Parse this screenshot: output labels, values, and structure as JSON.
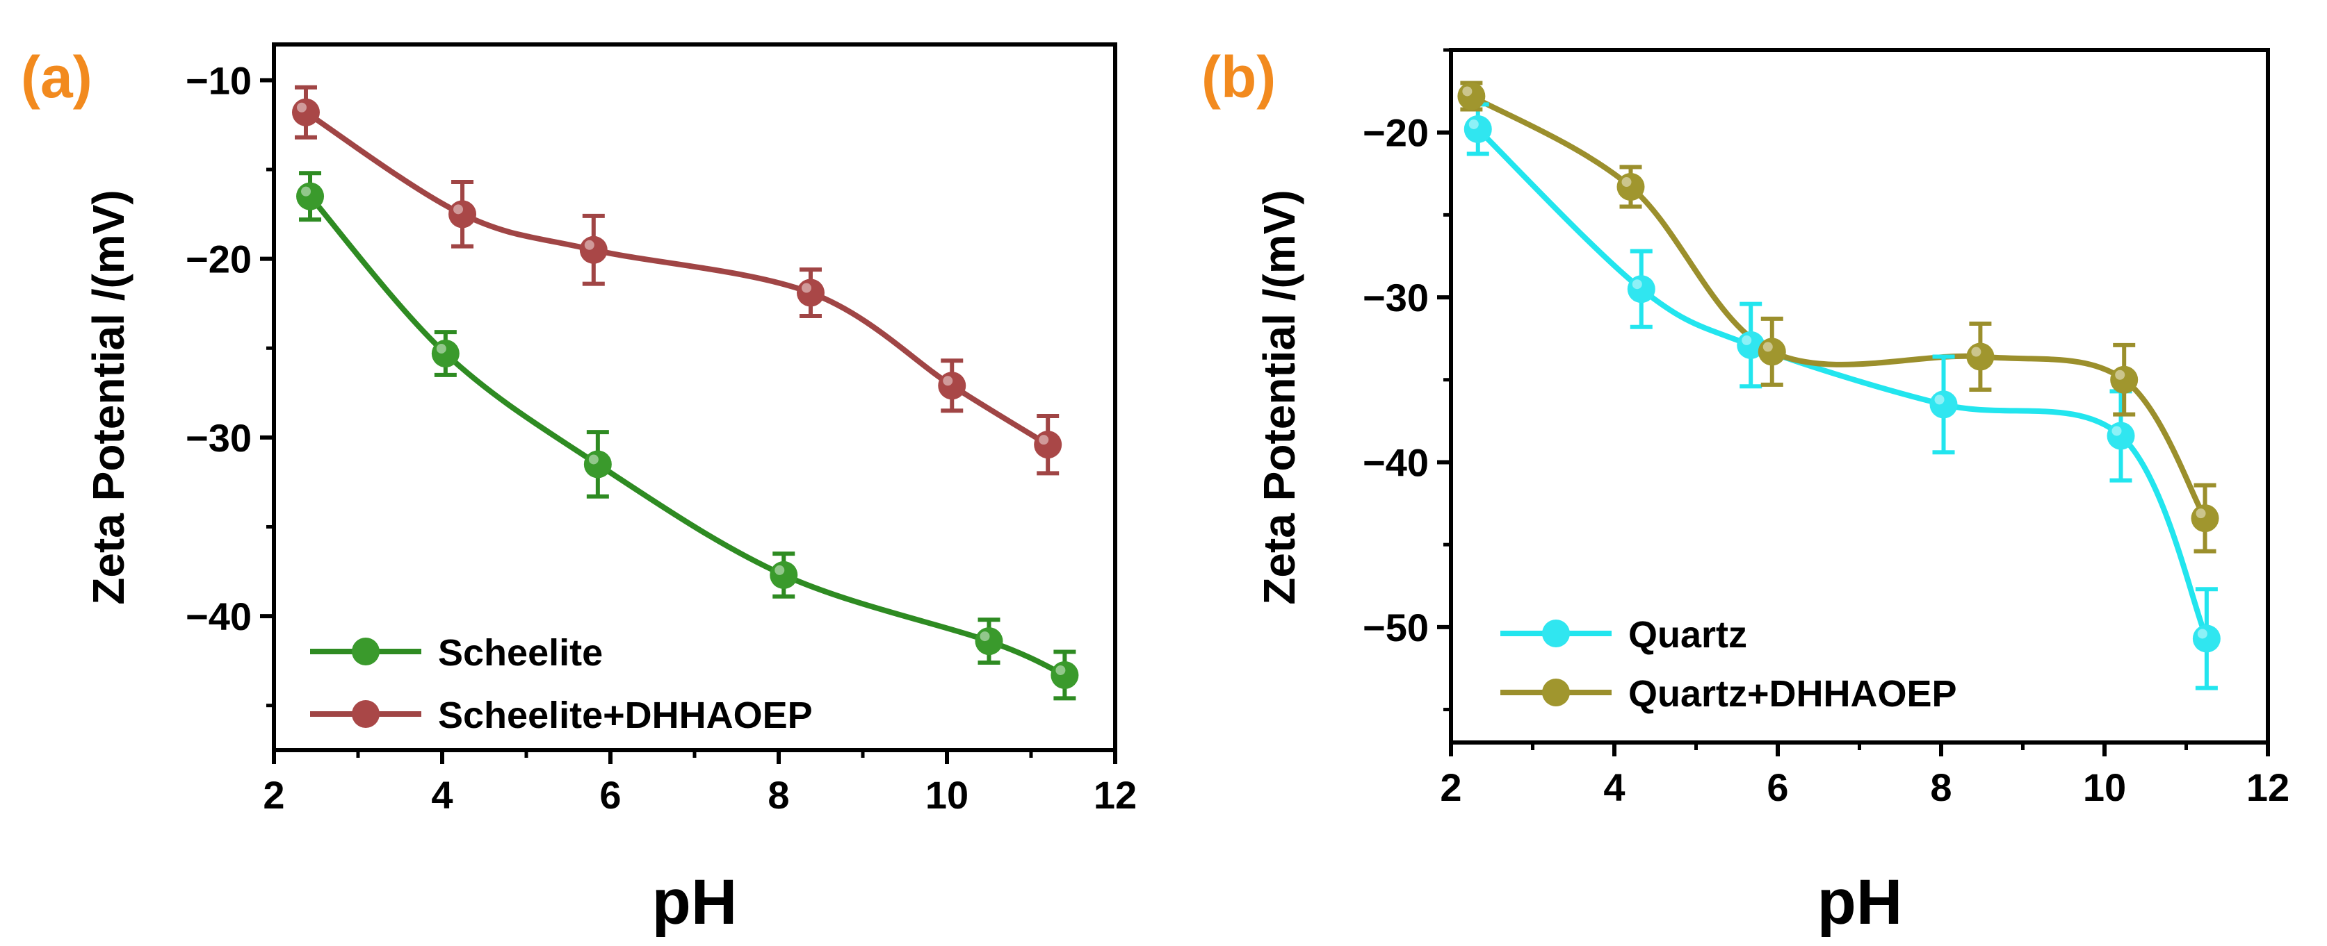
{
  "chart_data": [
    {
      "type": "line",
      "panel_label": "(a)",
      "panel_label_color": "#f28a1e",
      "xlabel": "pH",
      "ylabel": "Zeta Potential /(mV)",
      "xlim": [
        2,
        12
      ],
      "ylim": [
        -47.5,
        -8
      ],
      "xticks": [
        2,
        4,
        6,
        8,
        10,
        12
      ],
      "xtick_labels": [
        "2",
        "4",
        "6",
        "8",
        "10",
        "12"
      ],
      "yticks": [
        -10,
        -20,
        -30,
        -40
      ],
      "ytick_labels": [
        "−10",
        "−20",
        "−30",
        "−40"
      ],
      "legend_position": "bottom-left",
      "series": [
        {
          "name": "Scheelite",
          "color": "#2e8b22",
          "marker_color": "#3a9a2c",
          "x": [
            2.43,
            4.04,
            5.85,
            8.06,
            10.5,
            11.4
          ],
          "y": [
            -16.5,
            -25.3,
            -31.5,
            -37.7,
            -41.4,
            -43.3
          ],
          "err": [
            1.3,
            1.2,
            1.8,
            1.2,
            1.2,
            1.3
          ]
        },
        {
          "name": "Scheelite+DHHAOEP",
          "color": "#a04545",
          "marker_color": "#a94747",
          "x": [
            2.38,
            4.24,
            5.8,
            8.38,
            10.06,
            11.2
          ],
          "y": [
            -11.8,
            -17.5,
            -19.5,
            -21.9,
            -27.1,
            -30.4
          ],
          "err": [
            1.4,
            1.8,
            1.9,
            1.3,
            1.4,
            1.6
          ]
        }
      ]
    },
    {
      "type": "line",
      "panel_label": "(b)",
      "panel_label_color": "#f28a1e",
      "xlabel": "pH",
      "ylabel": "Zeta Potential /(mV)",
      "xlim": [
        2,
        12
      ],
      "ylim": [
        -57,
        -15
      ],
      "xticks": [
        2,
        4,
        6,
        8,
        10,
        12
      ],
      "xtick_labels": [
        "2",
        "4",
        "6",
        "8",
        "10",
        "12"
      ],
      "yticks": [
        -20,
        -30,
        -40,
        -50
      ],
      "ytick_labels": [
        "−20",
        "−30",
        "−40",
        "−50"
      ],
      "legend_position": "bottom-left",
      "series": [
        {
          "name": "Quartz",
          "color": "#22e5ee",
          "marker_color": "#30e6f0",
          "x": [
            2.33,
            4.33,
            5.67,
            8.03,
            10.2,
            11.25
          ],
          "y": [
            -19.8,
            -29.5,
            -32.9,
            -36.5,
            -38.4,
            -50.7
          ],
          "err": [
            1.5,
            2.3,
            2.5,
            2.9,
            2.7,
            3.0
          ]
        },
        {
          "name": "Quartz+DHHAOEP",
          "color": "#9b8f2c",
          "marker_color": "#a0962e",
          "x": [
            2.25,
            4.2,
            5.93,
            8.48,
            10.24,
            11.23
          ],
          "y": [
            -17.8,
            -23.3,
            -33.3,
            -33.6,
            -35.0,
            -43.4
          ],
          "err": [
            0.8,
            1.2,
            2.0,
            2.0,
            2.1,
            2.0
          ]
        }
      ]
    }
  ]
}
